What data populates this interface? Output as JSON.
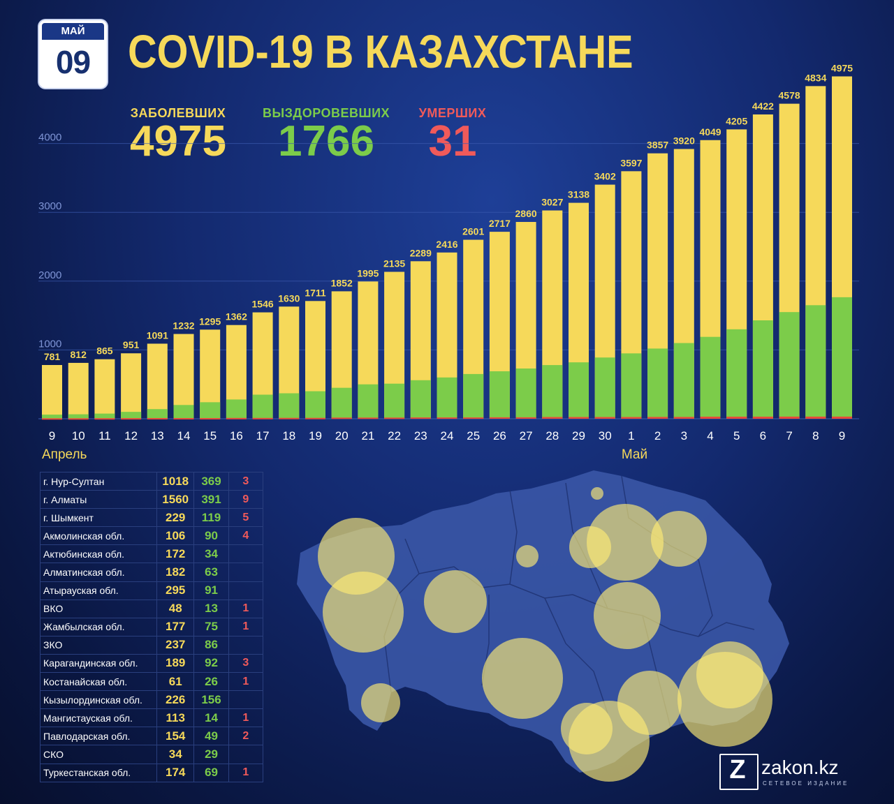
{
  "date": {
    "month": "МАЙ",
    "day": "09"
  },
  "title": "COVID-19 В КАЗАХСТАНЕ",
  "kpis": {
    "cases": {
      "label": "ЗАБОЛЕВШИХ",
      "value": "4975",
      "color": "#f6d95a"
    },
    "recovered": {
      "label": "ВЫЗДОРОВЕВШИХ",
      "value": "1766",
      "color": "#7ccc4a"
    },
    "deaths": {
      "label": "УМЕРШИХ",
      "value": "31",
      "color": "#f05a5a"
    }
  },
  "colors": {
    "cases": "#f6d95a",
    "recovered": "#7ccc4a",
    "deaths": "#e64a3a",
    "grid": "#3c5bb0",
    "axis_text": "#7f95d6"
  },
  "chart_data": {
    "type": "bar",
    "categories": [
      "9",
      "10",
      "11",
      "12",
      "13",
      "14",
      "15",
      "16",
      "17",
      "18",
      "19",
      "20",
      "21",
      "22",
      "23",
      "24",
      "25",
      "26",
      "27",
      "28",
      "29",
      "30",
      "1",
      "2",
      "3",
      "4",
      "5",
      "6",
      "7",
      "8",
      "9"
    ],
    "month_labels": [
      "Апрель",
      "Май"
    ],
    "series": [
      {
        "key": "cases",
        "values": [
          781,
          812,
          865,
          951,
          1091,
          1232,
          1295,
          1362,
          1546,
          1630,
          1711,
          1852,
          1995,
          2135,
          2289,
          2416,
          2601,
          2717,
          2860,
          3027,
          3138,
          3402,
          3597,
          3857,
          3920,
          4049,
          4205,
          4422,
          4578,
          4834,
          4975
        ]
      },
      {
        "key": "recovered",
        "values": [
          60,
          65,
          75,
          100,
          140,
          200,
          240,
          280,
          350,
          370,
          400,
          450,
          500,
          510,
          560,
          600,
          650,
          690,
          730,
          780,
          820,
          890,
          950,
          1020,
          1100,
          1190,
          1300,
          1430,
          1550,
          1650,
          1766
        ]
      },
      {
        "key": "deaths",
        "values": [
          7,
          7,
          8,
          9,
          10,
          10,
          10,
          12,
          12,
          13,
          13,
          17,
          17,
          17,
          19,
          19,
          19,
          21,
          21,
          25,
          25,
          25,
          25,
          26,
          26,
          30,
          30,
          30,
          31,
          31,
          31
        ]
      }
    ],
    "yticks": [
      1000,
      2000,
      3000,
      4000
    ],
    "ylim": [
      0,
      5000
    ],
    "grid": true,
    "data_labels": true
  },
  "regions": [
    {
      "name": "г. Нур-Султан",
      "cases": "1018",
      "recovered": "369",
      "deaths": "3"
    },
    {
      "name": "г. Алматы",
      "cases": "1560",
      "recovered": "391",
      "deaths": "9"
    },
    {
      "name": "г. Шымкент",
      "cases": "229",
      "recovered": "119",
      "deaths": "5"
    },
    {
      "name": "Акмолинская обл.",
      "cases": "106",
      "recovered": "90",
      "deaths": "4"
    },
    {
      "name": "Актюбинская обл.",
      "cases": "172",
      "recovered": "34",
      "deaths": ""
    },
    {
      "name": "Алматинская обл.",
      "cases": "182",
      "recovered": "63",
      "deaths": ""
    },
    {
      "name": "Атырауская обл.",
      "cases": "295",
      "recovered": "91",
      "deaths": ""
    },
    {
      "name": "ВКО",
      "cases": "48",
      "recovered": "13",
      "deaths": "1"
    },
    {
      "name": "Жамбылская обл.",
      "cases": "177",
      "recovered": "75",
      "deaths": "1"
    },
    {
      "name": "ЗКО",
      "cases": "237",
      "recovered": "86",
      "deaths": ""
    },
    {
      "name": "Карагандинская обл.",
      "cases": "189",
      "recovered": "92",
      "deaths": "3"
    },
    {
      "name": "Костанайская обл.",
      "cases": "61",
      "recovered": "26",
      "deaths": "1"
    },
    {
      "name": "Кызылординская обл.",
      "cases": "226",
      "recovered": "156",
      "deaths": ""
    },
    {
      "name": "Мангистауская обл.",
      "cases": "113",
      "recovered": "14",
      "deaths": "1"
    },
    {
      "name": "Павлодарская обл.",
      "cases": "154",
      "recovered": "49",
      "deaths": "2"
    },
    {
      "name": "СКО",
      "cases": "34",
      "recovered": "29",
      "deaths": ""
    },
    {
      "name": "Туркестанская обл.",
      "cases": "174",
      "recovered": "69",
      "deaths": "1"
    }
  ],
  "logo": {
    "mark": "Z",
    "name": "zakon.kz",
    "tagline": "СЕТЕВОЕ ИЗДАНИЕ"
  }
}
